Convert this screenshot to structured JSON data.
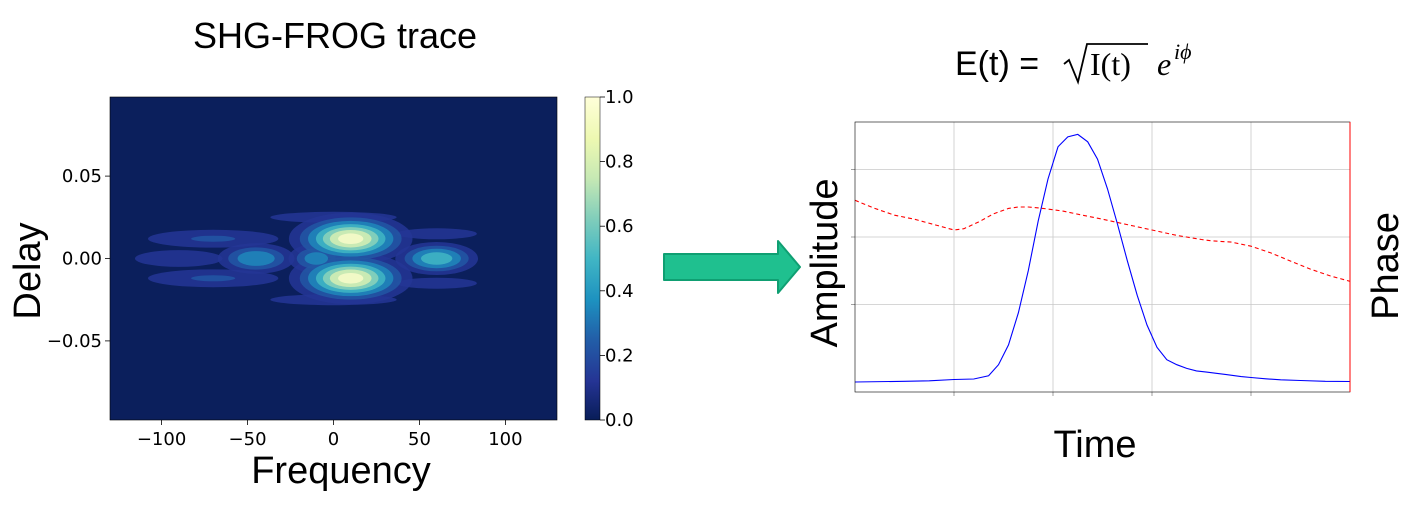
{
  "chart_data": [
    {
      "type": "heatmap",
      "title": "SHG-FROG trace",
      "xlabel": "Frequency",
      "ylabel": "Delay",
      "xlim": [
        -130,
        130
      ],
      "ylim": [
        -0.098,
        0.098
      ],
      "x_ticks": [
        {
          "value": -100,
          "label": "−100"
        },
        {
          "value": -50,
          "label": "−50"
        },
        {
          "value": 0,
          "label": "0"
        },
        {
          "value": 50,
          "label": "50"
        },
        {
          "value": 100,
          "label": "100"
        }
      ],
      "y_ticks": [
        {
          "value": 0.05,
          "label": "0.05"
        },
        {
          "value": 0.0,
          "label": "0.00"
        },
        {
          "value": -0.05,
          "label": "−0.05"
        }
      ],
      "colorbar": {
        "range": [
          0.0,
          1.0
        ],
        "ticks": [
          {
            "value": 1.0,
            "label": "1.0"
          },
          {
            "value": 0.8,
            "label": "0.8"
          },
          {
            "value": 0.6,
            "label": "0.6"
          },
          {
            "value": 0.4,
            "label": "0.4"
          },
          {
            "value": 0.2,
            "label": "0.2"
          },
          {
            "value": 0.0,
            "label": "0.0"
          }
        ],
        "colormap": "YlGnBu"
      },
      "colors": {
        "background": "#0b1f5c",
        "peak": "#ffffd0"
      },
      "blobs": [
        {
          "x": 10,
          "y": 0.012,
          "sx": 16,
          "sy": 0.007,
          "a": 1.0
        },
        {
          "x": 10,
          "y": -0.012,
          "sx": 16,
          "sy": 0.007,
          "a": 1.0
        },
        {
          "x": 60,
          "y": 0.0,
          "sx": 12,
          "sy": 0.005,
          "a": 0.6
        },
        {
          "x": -45,
          "y": 0.0,
          "sx": 12,
          "sy": 0.005,
          "a": 0.45
        },
        {
          "x": -10,
          "y": 0.0,
          "sx": 9,
          "sy": 0.005,
          "a": 0.4
        },
        {
          "x": -70,
          "y": 0.012,
          "sx": 28,
          "sy": 0.004,
          "a": 0.2
        },
        {
          "x": -70,
          "y": -0.012,
          "sx": 28,
          "sy": 0.004,
          "a": 0.2
        },
        {
          "x": -90,
          "y": 0.0,
          "sx": 20,
          "sy": 0.004,
          "a": 0.18
        },
        {
          "x": 0,
          "y": 0.025,
          "sx": 55,
          "sy": 0.005,
          "a": 0.1
        },
        {
          "x": 0,
          "y": -0.025,
          "sx": 55,
          "sy": 0.005,
          "a": 0.1
        },
        {
          "x": 60,
          "y": 0.015,
          "sx": 35,
          "sy": 0.005,
          "a": 0.1
        },
        {
          "x": 60,
          "y": -0.015,
          "sx": 35,
          "sy": 0.005,
          "a": 0.1
        }
      ]
    },
    {
      "type": "line",
      "formula": {
        "lhs": "E(t) = ",
        "radicand": "I(t)",
        "base": "e",
        "exponent": "iϕ"
      },
      "xlabel": "Time",
      "ylabel": "Amplitude",
      "y2label": "Phase",
      "xlim": [
        0,
        100
      ],
      "ylim": [
        0,
        1.05
      ],
      "y2lim": [
        0,
        1
      ],
      "grid": true,
      "x_grid": [
        20,
        40,
        60,
        80
      ],
      "y_grid": [
        0.3,
        0.6,
        0.9
      ],
      "series": [
        {
          "role": "amplitude",
          "color": "#0000ff",
          "dash": "",
          "x": [
            0,
            10,
            15,
            20,
            24,
            27,
            29,
            31,
            33,
            35,
            37,
            39,
            41,
            43,
            45,
            47,
            49,
            51,
            53,
            55,
            57,
            59,
            61,
            63,
            65,
            67,
            69,
            71,
            73,
            75,
            78,
            80,
            83,
            86,
            90,
            95,
            100
          ],
          "y": [
            0.0,
            0.003,
            0.005,
            0.01,
            0.012,
            0.025,
            0.07,
            0.15,
            0.28,
            0.45,
            0.65,
            0.82,
            0.95,
            0.99,
            1.0,
            0.97,
            0.9,
            0.78,
            0.64,
            0.49,
            0.35,
            0.23,
            0.14,
            0.09,
            0.07,
            0.055,
            0.045,
            0.04,
            0.035,
            0.03,
            0.022,
            0.018,
            0.013,
            0.009,
            0.006,
            0.003,
            0.002
          ]
        },
        {
          "role": "phase",
          "color": "#ff0000",
          "dash": "4 3",
          "x": [
            0,
            4,
            8,
            12,
            16,
            20,
            22,
            25,
            28,
            31,
            33,
            35,
            38,
            42,
            46,
            50,
            55,
            60,
            65,
            70,
            72,
            76,
            80,
            84,
            88,
            92,
            96,
            100
          ],
          "y": [
            0.71,
            0.68,
            0.655,
            0.64,
            0.62,
            0.6,
            0.605,
            0.63,
            0.66,
            0.68,
            0.685,
            0.685,
            0.68,
            0.67,
            0.655,
            0.64,
            0.62,
            0.6,
            0.58,
            0.565,
            0.56,
            0.555,
            0.54,
            0.515,
            0.485,
            0.455,
            0.43,
            0.41
          ]
        }
      ]
    }
  ]
}
